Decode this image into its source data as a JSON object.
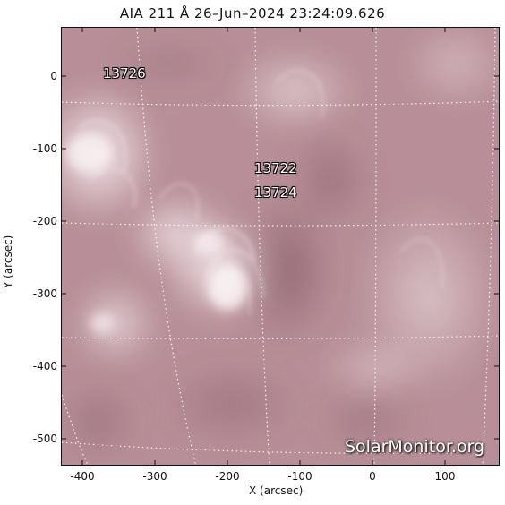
{
  "title": "AIA 211 Å 26–Jun–2024 23:24:09.626",
  "axes": {
    "xlabel": "X (arcsec)",
    "ylabel": "Y (arcsec)",
    "x_ticks": [
      "-400",
      "-300",
      "-200",
      "-100",
      "0",
      "100"
    ],
    "y_ticks": [
      "0",
      "-100",
      "-200",
      "-300",
      "-400",
      "-500"
    ]
  },
  "active_regions": [
    {
      "id": "13726"
    },
    {
      "id": "13722"
    },
    {
      "id": "13724"
    }
  ],
  "watermark": "SolarMonitor.org",
  "colors": {
    "disk_base": "#b78d96",
    "bright": "#f3e6ea",
    "dark": "#8e6470",
    "grid": "#ffffff"
  }
}
